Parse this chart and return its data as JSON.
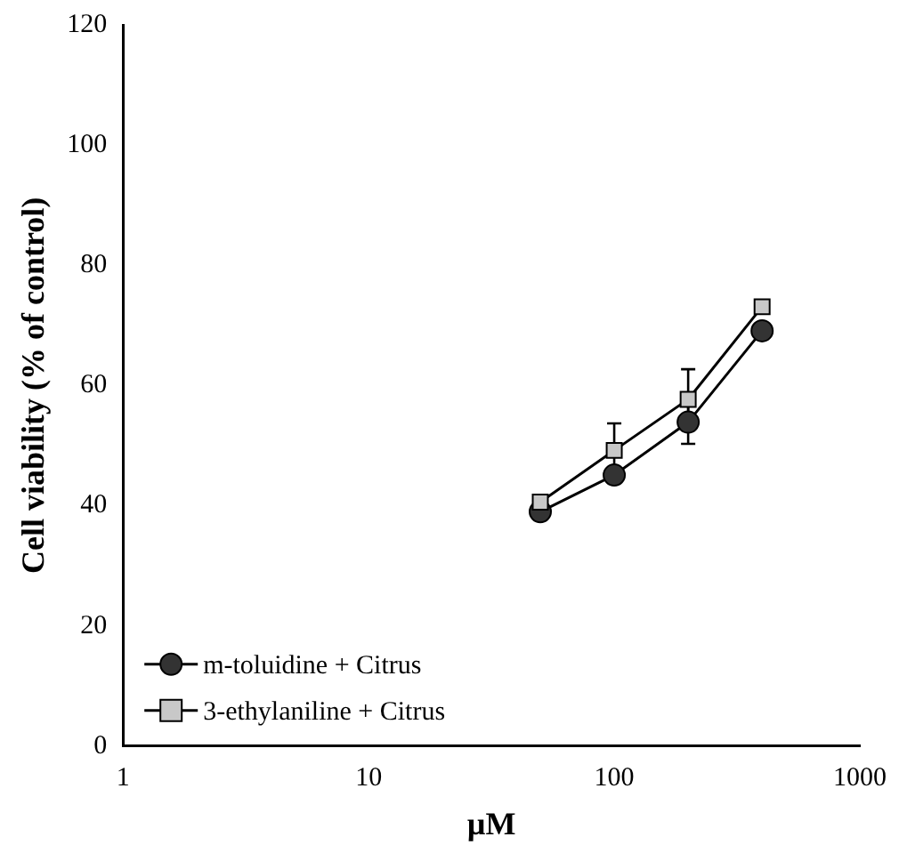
{
  "chart_data": {
    "type": "line",
    "xlabel": "µM",
    "ylabel": "Cell viability (% of control)",
    "log": "x",
    "xlim": [
      1,
      1000
    ],
    "xticks": [
      1,
      10,
      100,
      1000
    ],
    "ylim": [
      0,
      120
    ],
    "yticks": [
      0,
      20,
      40,
      60,
      80,
      100,
      120
    ],
    "grid": false,
    "legend": "bottom left",
    "line_style": "solid",
    "series": [
      {
        "name": "m-toluidine + Citrus",
        "color": "#333333",
        "marker": "circle",
        "x": [
          50,
          100,
          200,
          400
        ],
        "values": [
          39,
          45.1,
          53.9,
          69.1
        ],
        "errors": [
          null,
          null,
          3.6,
          null
        ]
      },
      {
        "name": "3-ethylaniline + Citrus",
        "color": "#c8c8c8",
        "marker": "square",
        "x": [
          50,
          100,
          200,
          400
        ],
        "values": [
          40.6,
          49.2,
          57.7,
          73.1
        ],
        "errors": [
          null,
          4.5,
          5,
          null
        ]
      }
    ]
  }
}
